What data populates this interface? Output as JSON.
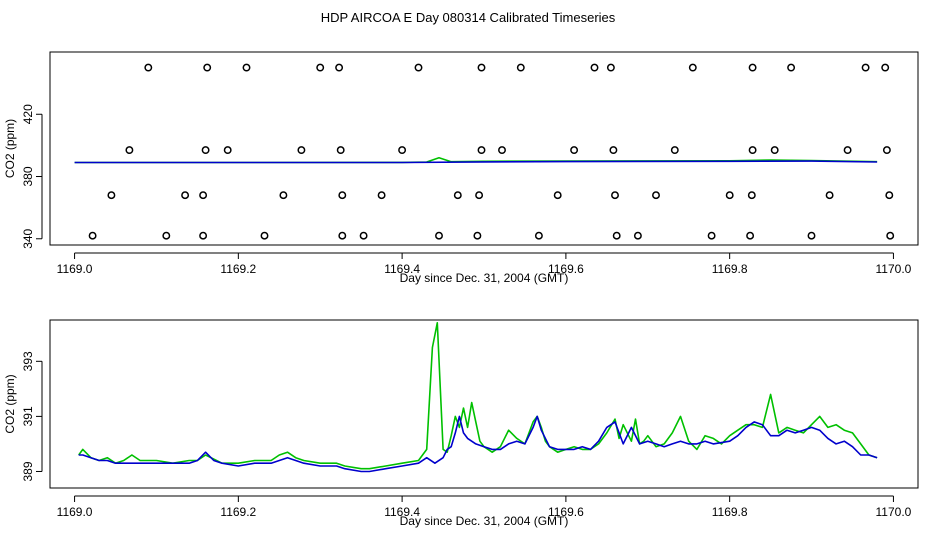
{
  "title": "HDP AIRCOA E  Day 080314  Calibrated Timeseries",
  "colors": {
    "axis": "#000000",
    "green": "#00c000",
    "blue": "#0000cc",
    "points": "#000000"
  },
  "chart_data": [
    {
      "type": "scatter",
      "xlabel": "Day since Dec. 31, 2004 (GMT)",
      "ylabel": "CO2 (ppm)",
      "xlim": [
        1168.97,
        1170.03
      ],
      "ylim": [
        336,
        460
      ],
      "x_ticks": [
        1169.0,
        1169.2,
        1169.4,
        1169.6,
        1169.8,
        1170.0
      ],
      "x_tick_labels": [
        "1169.0",
        "1169.2",
        "1169.4",
        "1169.6",
        "1169.8",
        "1170.0"
      ],
      "y_ticks": [
        340,
        380,
        420
      ],
      "y_tick_labels": [
        "340",
        "380",
        "420"
      ],
      "points": [
        {
          "x": 1169.09,
          "y": 450
        },
        {
          "x": 1169.162,
          "y": 450
        },
        {
          "x": 1169.21,
          "y": 450
        },
        {
          "x": 1169.3,
          "y": 450
        },
        {
          "x": 1169.323,
          "y": 450
        },
        {
          "x": 1169.42,
          "y": 450
        },
        {
          "x": 1169.497,
          "y": 450
        },
        {
          "x": 1169.545,
          "y": 450
        },
        {
          "x": 1169.635,
          "y": 450
        },
        {
          "x": 1169.655,
          "y": 450
        },
        {
          "x": 1169.755,
          "y": 450
        },
        {
          "x": 1169.828,
          "y": 450
        },
        {
          "x": 1169.875,
          "y": 450
        },
        {
          "x": 1169.966,
          "y": 450
        },
        {
          "x": 1169.99,
          "y": 450
        },
        {
          "x": 1169.067,
          "y": 397
        },
        {
          "x": 1169.16,
          "y": 397
        },
        {
          "x": 1169.187,
          "y": 397
        },
        {
          "x": 1169.277,
          "y": 397
        },
        {
          "x": 1169.325,
          "y": 397
        },
        {
          "x": 1169.4,
          "y": 397
        },
        {
          "x": 1169.497,
          "y": 397
        },
        {
          "x": 1169.522,
          "y": 397
        },
        {
          "x": 1169.61,
          "y": 397
        },
        {
          "x": 1169.658,
          "y": 397
        },
        {
          "x": 1169.733,
          "y": 397
        },
        {
          "x": 1169.828,
          "y": 397
        },
        {
          "x": 1169.855,
          "y": 397
        },
        {
          "x": 1169.944,
          "y": 397
        },
        {
          "x": 1169.992,
          "y": 397
        },
        {
          "x": 1169.045,
          "y": 368
        },
        {
          "x": 1169.135,
          "y": 368
        },
        {
          "x": 1169.157,
          "y": 368
        },
        {
          "x": 1169.255,
          "y": 368
        },
        {
          "x": 1169.327,
          "y": 368
        },
        {
          "x": 1169.375,
          "y": 368
        },
        {
          "x": 1169.468,
          "y": 368
        },
        {
          "x": 1169.494,
          "y": 368
        },
        {
          "x": 1169.59,
          "y": 368
        },
        {
          "x": 1169.66,
          "y": 368
        },
        {
          "x": 1169.71,
          "y": 368
        },
        {
          "x": 1169.8,
          "y": 368
        },
        {
          "x": 1169.827,
          "y": 368
        },
        {
          "x": 1169.922,
          "y": 368
        },
        {
          "x": 1169.995,
          "y": 368
        },
        {
          "x": 1169.022,
          "y": 342
        },
        {
          "x": 1169.112,
          "y": 342
        },
        {
          "x": 1169.157,
          "y": 342
        },
        {
          "x": 1169.232,
          "y": 342
        },
        {
          "x": 1169.327,
          "y": 342
        },
        {
          "x": 1169.353,
          "y": 342
        },
        {
          "x": 1169.445,
          "y": 342
        },
        {
          "x": 1169.492,
          "y": 342
        },
        {
          "x": 1169.567,
          "y": 342
        },
        {
          "x": 1169.662,
          "y": 342
        },
        {
          "x": 1169.688,
          "y": 342
        },
        {
          "x": 1169.778,
          "y": 342
        },
        {
          "x": 1169.825,
          "y": 342
        },
        {
          "x": 1169.9,
          "y": 342
        },
        {
          "x": 1169.996,
          "y": 342
        }
      ],
      "series": [
        {
          "x": [
            1169.0,
            1169.2,
            1169.4,
            1169.43,
            1169.445,
            1169.46,
            1169.5,
            1169.6,
            1169.8,
            1169.85,
            1169.9,
            1169.98
          ],
          "y": [
            389,
            389,
            389.1,
            389.3,
            392,
            389.5,
            389.8,
            390,
            390.1,
            390.6,
            390.2,
            389.5
          ]
        },
        {
          "x": [
            1169.0,
            1169.2,
            1169.4,
            1169.5,
            1169.6,
            1169.8,
            1169.9,
            1169.98
          ],
          "y": [
            389,
            389,
            389,
            389.4,
            389.6,
            389.8,
            389.9,
            389.3
          ]
        }
      ]
    },
    {
      "type": "line",
      "xlabel": "Day since Dec. 31, 2004 (GMT)",
      "ylabel": "CO2 (ppm)",
      "xlim": [
        1168.97,
        1170.03
      ],
      "ylim": [
        388.4,
        394.5
      ],
      "x_ticks": [
        1169.0,
        1169.2,
        1169.4,
        1169.6,
        1169.8,
        1170.0
      ],
      "x_tick_labels": [
        "1169.0",
        "1169.2",
        "1169.4",
        "1169.6",
        "1169.8",
        "1170.0"
      ],
      "y_ticks": [
        389,
        391,
        393
      ],
      "y_tick_labels": [
        "389",
        "391",
        "393"
      ],
      "series": [
        {
          "x": [
            1169.005,
            1169.01,
            1169.02,
            1169.03,
            1169.04,
            1169.05,
            1169.06,
            1169.07,
            1169.08,
            1169.1,
            1169.12,
            1169.14,
            1169.15,
            1169.16,
            1169.18,
            1169.2,
            1169.22,
            1169.24,
            1169.25,
            1169.26,
            1169.27,
            1169.28,
            1169.3,
            1169.32,
            1169.33,
            1169.35,
            1169.36,
            1169.38,
            1169.4,
            1169.42,
            1169.43,
            1169.437,
            1169.443,
            1169.45,
            1169.455,
            1169.46,
            1169.465,
            1169.47,
            1169.475,
            1169.48,
            1169.485,
            1169.49,
            1169.495,
            1169.5,
            1169.51,
            1169.52,
            1169.53,
            1169.54,
            1169.55,
            1169.56,
            1169.565,
            1169.57,
            1169.575,
            1169.58,
            1169.59,
            1169.6,
            1169.61,
            1169.62,
            1169.63,
            1169.64,
            1169.65,
            1169.66,
            1169.665,
            1169.67,
            1169.68,
            1169.685,
            1169.69,
            1169.695,
            1169.7,
            1169.71,
            1169.72,
            1169.73,
            1169.74,
            1169.75,
            1169.76,
            1169.77,
            1169.78,
            1169.79,
            1169.8,
            1169.81,
            1169.82,
            1169.83,
            1169.84,
            1169.85,
            1169.86,
            1169.87,
            1169.88,
            1169.89,
            1169.9,
            1169.91,
            1169.92,
            1169.93,
            1169.94,
            1169.95,
            1169.96,
            1169.97,
            1169.98
          ],
          "y": [
            389.6,
            389.8,
            389.5,
            389.4,
            389.5,
            389.3,
            389.4,
            389.6,
            389.4,
            389.4,
            389.3,
            389.4,
            389.4,
            389.6,
            389.3,
            389.3,
            389.4,
            389.4,
            389.6,
            389.7,
            389.5,
            389.4,
            389.3,
            389.3,
            389.2,
            389.1,
            389.1,
            389.2,
            389.3,
            389.4,
            389.8,
            393.5,
            394.4,
            389.8,
            389.7,
            390.3,
            391.0,
            390.6,
            391.3,
            390.6,
            391.5,
            390.8,
            390.1,
            389.9,
            389.7,
            389.9,
            390.5,
            390.2,
            390.0,
            390.8,
            391.0,
            390.6,
            390.1,
            389.9,
            389.7,
            389.8,
            389.9,
            389.8,
            389.8,
            390.0,
            390.4,
            390.9,
            390.2,
            390.7,
            390.1,
            390.9,
            390.0,
            390.1,
            390.3,
            389.9,
            390.0,
            390.4,
            391.0,
            390.1,
            389.8,
            390.3,
            390.2,
            390.0,
            390.3,
            390.5,
            390.7,
            390.7,
            390.6,
            391.8,
            390.4,
            390.6,
            390.5,
            390.4,
            390.7,
            391.0,
            390.6,
            390.7,
            390.5,
            390.4,
            390.0,
            389.6,
            389.5
          ]
        },
        {
          "x": [
            1169.005,
            1169.01,
            1169.02,
            1169.03,
            1169.04,
            1169.05,
            1169.06,
            1169.08,
            1169.1,
            1169.12,
            1169.14,
            1169.15,
            1169.16,
            1169.17,
            1169.18,
            1169.2,
            1169.22,
            1169.24,
            1169.25,
            1169.26,
            1169.27,
            1169.28,
            1169.3,
            1169.32,
            1169.33,
            1169.35,
            1169.36,
            1169.38,
            1169.4,
            1169.42,
            1169.43,
            1169.44,
            1169.45,
            1169.455,
            1169.46,
            1169.465,
            1169.47,
            1169.475,
            1169.48,
            1169.49,
            1169.5,
            1169.51,
            1169.52,
            1169.53,
            1169.54,
            1169.55,
            1169.56,
            1169.565,
            1169.57,
            1169.58,
            1169.59,
            1169.6,
            1169.61,
            1169.62,
            1169.63,
            1169.64,
            1169.65,
            1169.66,
            1169.67,
            1169.68,
            1169.69,
            1169.7,
            1169.71,
            1169.72,
            1169.73,
            1169.74,
            1169.75,
            1169.76,
            1169.77,
            1169.78,
            1169.8,
            1169.81,
            1169.82,
            1169.83,
            1169.84,
            1169.85,
            1169.86,
            1169.87,
            1169.88,
            1169.89,
            1169.9,
            1169.91,
            1169.92,
            1169.93,
            1169.94,
            1169.95,
            1169.96,
            1169.97,
            1169.98
          ],
          "y": [
            389.6,
            389.6,
            389.5,
            389.4,
            389.4,
            389.3,
            389.3,
            389.3,
            389.3,
            389.3,
            389.3,
            389.4,
            389.7,
            389.4,
            389.3,
            389.2,
            389.3,
            389.3,
            389.4,
            389.5,
            389.4,
            389.3,
            389.2,
            389.2,
            389.1,
            389.0,
            389.0,
            389.1,
            389.2,
            389.3,
            389.5,
            389.3,
            389.5,
            389.8,
            389.9,
            390.4,
            391.0,
            390.4,
            390.2,
            390.0,
            389.9,
            389.8,
            389.8,
            390.0,
            390.1,
            390.0,
            390.6,
            391.0,
            390.5,
            389.9,
            389.8,
            389.8,
            389.8,
            389.9,
            389.8,
            390.1,
            390.6,
            390.8,
            390.0,
            390.6,
            390.0,
            390.1,
            390.0,
            389.9,
            390.0,
            390.1,
            390.0,
            390.0,
            390.1,
            390.0,
            390.1,
            390.3,
            390.6,
            390.8,
            390.7,
            390.3,
            390.3,
            390.5,
            390.4,
            390.5,
            390.6,
            390.5,
            390.2,
            390.0,
            390.1,
            389.9,
            389.6,
            389.6,
            389.5
          ]
        }
      ]
    }
  ]
}
